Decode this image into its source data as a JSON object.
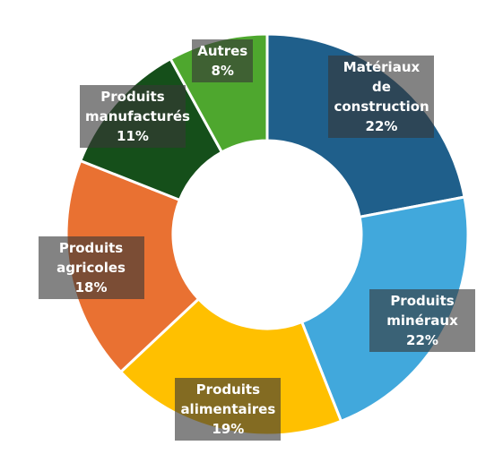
{
  "chart_data": {
    "type": "donut",
    "categories": [
      "Matériaux de construction",
      "Produits minéraux",
      "Produits alimentaires",
      "Produits agricoles",
      "Produits manufacturés",
      "Autres"
    ],
    "values": [
      22,
      22,
      19,
      18,
      11,
      8
    ],
    "value_labels": [
      "22%",
      "22%",
      "19%",
      "18%",
      "11%",
      "8%"
    ],
    "colors": [
      "#1f5f8b",
      "#41a8dc",
      "#ffc000",
      "#e97132",
      "#154f1a",
      "#4ea72e"
    ]
  }
}
